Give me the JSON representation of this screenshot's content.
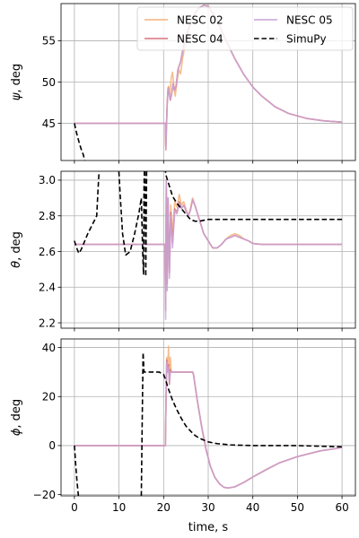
{
  "chart_data": {
    "type": "line",
    "shared_x": {
      "label": "time, s",
      "lim": [
        -3,
        63
      ],
      "ticks": [
        0,
        10,
        20,
        30,
        40,
        50,
        60
      ],
      "tick_labels": [
        "0",
        "10",
        "20",
        "30",
        "40",
        "50",
        "60"
      ]
    },
    "grid": true,
    "legend": {
      "placement": "top-right",
      "columns": 2,
      "entries": [
        {
          "name": "NESC 02",
          "color": "#f5b27a",
          "style": "solid"
        },
        {
          "name": "NESC 04",
          "color": "#d9717b",
          "style": "solid"
        },
        {
          "name": "NESC 05",
          "color": "#c9a3d6",
          "style": "solid"
        },
        {
          "name": "SimuPy",
          "color": "#000000",
          "style": "dashed"
        }
      ]
    },
    "panels": [
      {
        "ylabel_symbol": "ψ",
        "ylabel_text": ", deg",
        "ylim": [
          40.5,
          59.5
        ],
        "yticks": [
          45,
          50,
          55
        ],
        "ytick_labels": [
          "45",
          "50",
          "55"
        ],
        "series": [
          {
            "name": "NESC 02",
            "color": "#f5b27a",
            "dashed": false,
            "x": [
              0,
              20.4,
              20.45,
              20.6,
              20.9,
              21.1,
              21.4,
              21.7,
              22.0,
              22.3,
              22.6,
              23.0,
              23.4,
              23.8,
              24.3,
              25,
              26,
              27,
              28,
              29,
              30,
              32,
              34,
              36,
              38,
              40,
              42,
              45,
              48,
              52,
              56,
              60
            ],
            "y": [
              45,
              45,
              42.2,
              44.5,
              48.5,
              49.5,
              48.5,
              50.5,
              51.2,
              49.5,
              48.3,
              50.0,
              51.5,
              51.0,
              53.0,
              55.0,
              57.0,
              58.3,
              59.0,
              59.3,
              59.2,
              57.5,
              55.0,
              52.8,
              50.9,
              49.4,
              48.3,
              47.0,
              46.2,
              45.6,
              45.3,
              45.15
            ]
          },
          {
            "name": "NESC 04",
            "color": "#d9717b",
            "dashed": false,
            "x": [
              0,
              20.4,
              20.5,
              20.8,
              21.0,
              21.2,
              21.5,
              21.8,
              22.1,
              22.4,
              22.8,
              23.2,
              23.8,
              24.5,
              25,
              26,
              27,
              28,
              29,
              30,
              32,
              34,
              36,
              38,
              40,
              42,
              45,
              48,
              52,
              56,
              60
            ],
            "y": [
              45,
              45,
              41.8,
              47.5,
              49.3,
              48.7,
              47.8,
              48.5,
              49.8,
              49.0,
              49.5,
              51.5,
              52.5,
              54.5,
              55.5,
              57.2,
              58.4,
              59.0,
              59.3,
              59.2,
              57.5,
              55.0,
              52.8,
              50.9,
              49.4,
              48.3,
              47.0,
              46.2,
              45.6,
              45.3,
              45.15
            ]
          },
          {
            "name": "NESC 05",
            "color": "#c9a3d6",
            "dashed": false,
            "x": [
              0,
              20.4,
              20.5,
              20.8,
              21.0,
              21.2,
              21.5,
              21.8,
              22.1,
              22.4,
              22.8,
              23.2,
              23.8,
              24.5,
              25,
              26,
              27,
              28,
              29,
              30,
              32,
              34,
              36,
              38,
              40,
              42,
              45,
              48,
              52,
              56,
              60
            ],
            "y": [
              45,
              45,
              42.0,
              47.3,
              49.2,
              48.6,
              47.9,
              48.6,
              49.7,
              49.1,
              49.6,
              51.4,
              52.4,
              54.4,
              55.4,
              57.1,
              58.3,
              59.0,
              59.3,
              59.2,
              57.5,
              55.0,
              52.8,
              50.9,
              49.4,
              48.3,
              47.0,
              46.2,
              45.6,
              45.3,
              45.15
            ]
          },
          {
            "name": "SimuPy",
            "color": "#000000",
            "dashed": true,
            "x": [
              0,
              0.5,
              1,
              1.5,
              2,
              2.3
            ],
            "y": [
              45,
              43.8,
              42.8,
              41.9,
              41.2,
              40.5
            ]
          }
        ]
      },
      {
        "ylabel_symbol": "θ",
        "ylabel_text": ", deg",
        "ylim": [
          2.17,
          3.05
        ],
        "yticks": [
          2.2,
          2.4,
          2.6,
          2.8,
          3.0
        ],
        "ytick_labels": [
          "2.2",
          "2.4",
          "2.6",
          "2.8",
          "3.0"
        ],
        "series": [
          {
            "name": "NESC 02",
            "color": "#f5b27a",
            "dashed": false,
            "x": [
              0,
              20.3,
              20.45,
              20.6,
              20.8,
              21.0,
              21.3,
              21.6,
              22.0,
              22.5,
              23,
              23.5,
              24,
              24.5,
              25,
              25.5,
              26,
              26.5,
              27,
              28,
              29,
              30,
              31,
              32,
              33,
              34,
              35,
              36,
              37,
              38,
              39,
              40,
              42,
              45,
              50,
              60
            ],
            "y": [
              2.64,
              2.64,
              2.32,
              2.95,
              2.5,
              2.82,
              2.55,
              2.86,
              2.7,
              2.88,
              2.85,
              2.92,
              2.86,
              2.88,
              2.84,
              2.8,
              2.84,
              2.9,
              2.86,
              2.78,
              2.7,
              2.66,
              2.62,
              2.62,
              2.64,
              2.67,
              2.69,
              2.7,
              2.69,
              2.67,
              2.66,
              2.645,
              2.64,
              2.64,
              2.64,
              2.64
            ]
          },
          {
            "name": "NESC 04",
            "color": "#d9717b",
            "dashed": false,
            "x": [
              0,
              20.3,
              20.45,
              20.6,
              20.8,
              21.0,
              21.3,
              21.6,
              22.0,
              22.5,
              23,
              23.5,
              24,
              24.5,
              25,
              25.5,
              26,
              26.5,
              27,
              28,
              29,
              30,
              31,
              32,
              33,
              34,
              35,
              36,
              37,
              38,
              39,
              40,
              42,
              45,
              50,
              60
            ],
            "y": [
              2.64,
              2.64,
              2.27,
              3.0,
              2.42,
              2.9,
              2.48,
              2.82,
              2.65,
              2.84,
              2.82,
              2.88,
              2.84,
              2.86,
              2.83,
              2.8,
              2.83,
              2.89,
              2.86,
              2.78,
              2.7,
              2.66,
              2.62,
              2.62,
              2.64,
              2.67,
              2.68,
              2.69,
              2.68,
              2.67,
              2.66,
              2.645,
              2.64,
              2.64,
              2.64,
              2.64
            ]
          },
          {
            "name": "NESC 05",
            "color": "#c9a3d6",
            "dashed": false,
            "x": [
              0,
              20.3,
              20.45,
              20.6,
              20.8,
              21.0,
              21.3,
              21.6,
              22.0,
              22.5,
              23,
              23.5,
              24,
              24.5,
              25,
              25.5,
              26,
              26.5,
              27,
              28,
              29,
              30,
              31,
              32,
              33,
              34,
              35,
              36,
              37,
              38,
              39,
              40,
              42,
              45,
              50,
              60
            ],
            "y": [
              2.64,
              2.64,
              2.22,
              3.0,
              2.38,
              2.9,
              2.45,
              2.8,
              2.62,
              2.83,
              2.81,
              2.87,
              2.84,
              2.86,
              2.83,
              2.8,
              2.83,
              2.89,
              2.86,
              2.78,
              2.7,
              2.66,
              2.62,
              2.62,
              2.64,
              2.67,
              2.68,
              2.69,
              2.68,
              2.67,
              2.66,
              2.645,
              2.64,
              2.64,
              2.64,
              2.64
            ]
          },
          {
            "name": "SimuPy",
            "color": "#000000",
            "dashed": true,
            "x": [
              0,
              0.5,
              1,
              1.5,
              2,
              3,
              4,
              5,
              5.3,
              5.6,
              9.9,
              10.3,
              10.8,
              11.5,
              12.5,
              13.5,
              14.5,
              15,
              15.3,
              15.5,
              15.6,
              15.7,
              15.8,
              15.9,
              16.0,
              16.2,
              20.3,
              20.5,
              21,
              21.5,
              22,
              23,
              24,
              25,
              26,
              27,
              28,
              30,
              35,
              40,
              50,
              60
            ],
            "y": [
              2.66,
              2.62,
              2.59,
              2.61,
              2.64,
              2.7,
              2.75,
              2.8,
              2.95,
              3.08,
              3.08,
              2.9,
              2.7,
              2.58,
              2.6,
              2.7,
              2.82,
              2.9,
              2.6,
              2.47,
              2.95,
              3.08,
              3.08,
              2.8,
              2.46,
              3.08,
              3.08,
              3.03,
              2.99,
              2.95,
              2.91,
              2.87,
              2.84,
              2.81,
              2.78,
              2.77,
              2.77,
              2.78,
              2.78,
              2.78,
              2.78,
              2.78
            ]
          }
        ]
      },
      {
        "ylabel_symbol": "ϕ",
        "ylabel_text": ", deg",
        "ylim": [
          -20.5,
          43.5
        ],
        "yticks": [
          -20,
          0,
          20,
          40
        ],
        "ytick_labels": [
          "−20",
          "0",
          "20",
          "40"
        ],
        "series": [
          {
            "name": "NESC 02",
            "color": "#f5b27a",
            "dashed": false,
            "x": [
              0,
              20.2,
              20.4,
              20.55,
              20.7,
              20.9,
              21.1,
              21.3,
              21.5,
              21.7,
              22.0,
              24,
              26.5,
              26.7,
              27.5,
              28.5,
              29.5,
              30.5,
              31.5,
              32.5,
              33.5,
              34.5,
              36,
              38,
              40,
              43,
              46,
              50,
              55,
              60
            ],
            "y": [
              0,
              0,
              0,
              20,
              36,
              30,
              40.5,
              26,
              36,
              30,
              30,
              30,
              30,
              29,
              19,
              8,
              -1.5,
              -8.5,
              -13,
              -15.5,
              -17,
              -17.3,
              -16.8,
              -15,
              -12.8,
              -9.8,
              -7,
              -4.5,
              -2.2,
              -0.8
            ]
          },
          {
            "name": "NESC 04",
            "color": "#d9717b",
            "dashed": false,
            "x": [
              0,
              20.2,
              20.4,
              20.55,
              20.7,
              20.9,
              21.1,
              21.3,
              21.5,
              21.7,
              22.0,
              24,
              26.5,
              26.7,
              27.5,
              28.5,
              29.5,
              30.5,
              31.5,
              32.5,
              33.5,
              34.5,
              36,
              38,
              40,
              43,
              46,
              50,
              55,
              60
            ],
            "y": [
              0,
              0,
              0,
              20,
              35,
              30,
              33,
              25,
              31,
              30,
              30,
              30,
              30,
              29,
              19,
              8,
              -1.5,
              -8.5,
              -13,
              -15.5,
              -17,
              -17.3,
              -16.8,
              -15,
              -12.8,
              -9.8,
              -7,
              -4.5,
              -2.2,
              -0.8
            ]
          },
          {
            "name": "NESC 05",
            "color": "#c9a3d6",
            "dashed": false,
            "x": [
              0,
              20.2,
              20.4,
              20.55,
              20.7,
              20.9,
              21.1,
              21.3,
              21.5,
              21.7,
              22.0,
              24,
              26.5,
              26.7,
              27.5,
              28.5,
              29.5,
              30.5,
              31.5,
              32.5,
              33.5,
              34.5,
              36,
              38,
              40,
              43,
              46,
              50,
              55,
              60
            ],
            "y": [
              0,
              0,
              0,
              20,
              34,
              30,
              32,
              26,
              30,
              30,
              30,
              30,
              30,
              29,
              19,
              8,
              -1.5,
              -8.5,
              -13,
              -15.5,
              -17,
              -17.3,
              -16.8,
              -15,
              -12.8,
              -9.8,
              -7,
              -4.5,
              -2.2,
              -0.8
            ]
          },
          {
            "name": "SimuPy",
            "color": "#000000",
            "dashed": true,
            "x": [
              0,
              0.3,
              0.6,
              0.9
            ],
            "y": [
              0,
              -8,
              -15,
              -20.5
            ]
          },
          {
            "name": "SimuPy",
            "color": "#000000",
            "dashed": true,
            "x": [
              15.0,
              15.2,
              15.4,
              15.6,
              16,
              17,
              19,
              20,
              20.5,
              21,
              21.5,
              22,
              23,
              24,
              25,
              26,
              27,
              28,
              30,
              32,
              35,
              40,
              50,
              60
            ],
            "y": [
              -20.5,
              10,
              38,
              30,
              30,
              30,
              30,
              29,
              26.5,
              23.5,
              21,
              18.5,
              14.5,
              11,
              8,
              6,
              4.2,
              3,
              1.5,
              0.8,
              0.3,
              0,
              0,
              -0.5
            ]
          }
        ]
      }
    ]
  }
}
